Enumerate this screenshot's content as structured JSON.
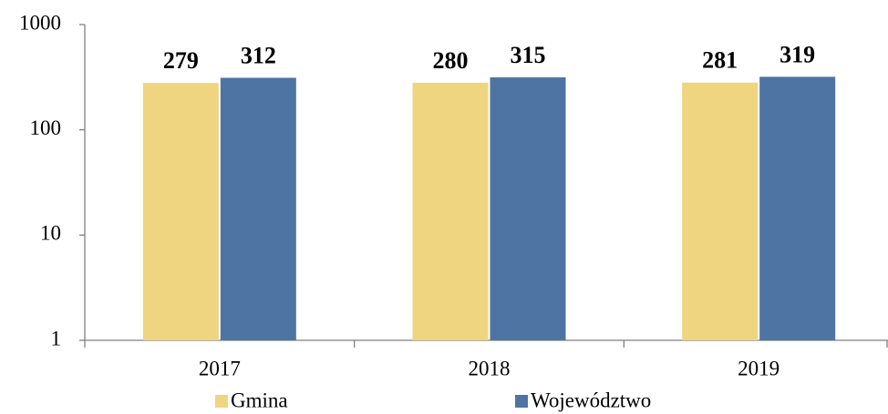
{
  "chart_data": {
    "type": "bar",
    "categories": [
      "2017",
      "2018",
      "2019"
    ],
    "series": [
      {
        "name": "Gmina",
        "color": "#f0d580",
        "values": [
          279,
          280,
          281
        ]
      },
      {
        "name": "Województwo",
        "color": "#4e74a3",
        "values": [
          312,
          315,
          319
        ]
      }
    ],
    "ylim": [
      1,
      1000
    ],
    "yticks": [
      1,
      10,
      100,
      1000
    ],
    "log_y": true,
    "grid": false,
    "legend": "bottom"
  }
}
